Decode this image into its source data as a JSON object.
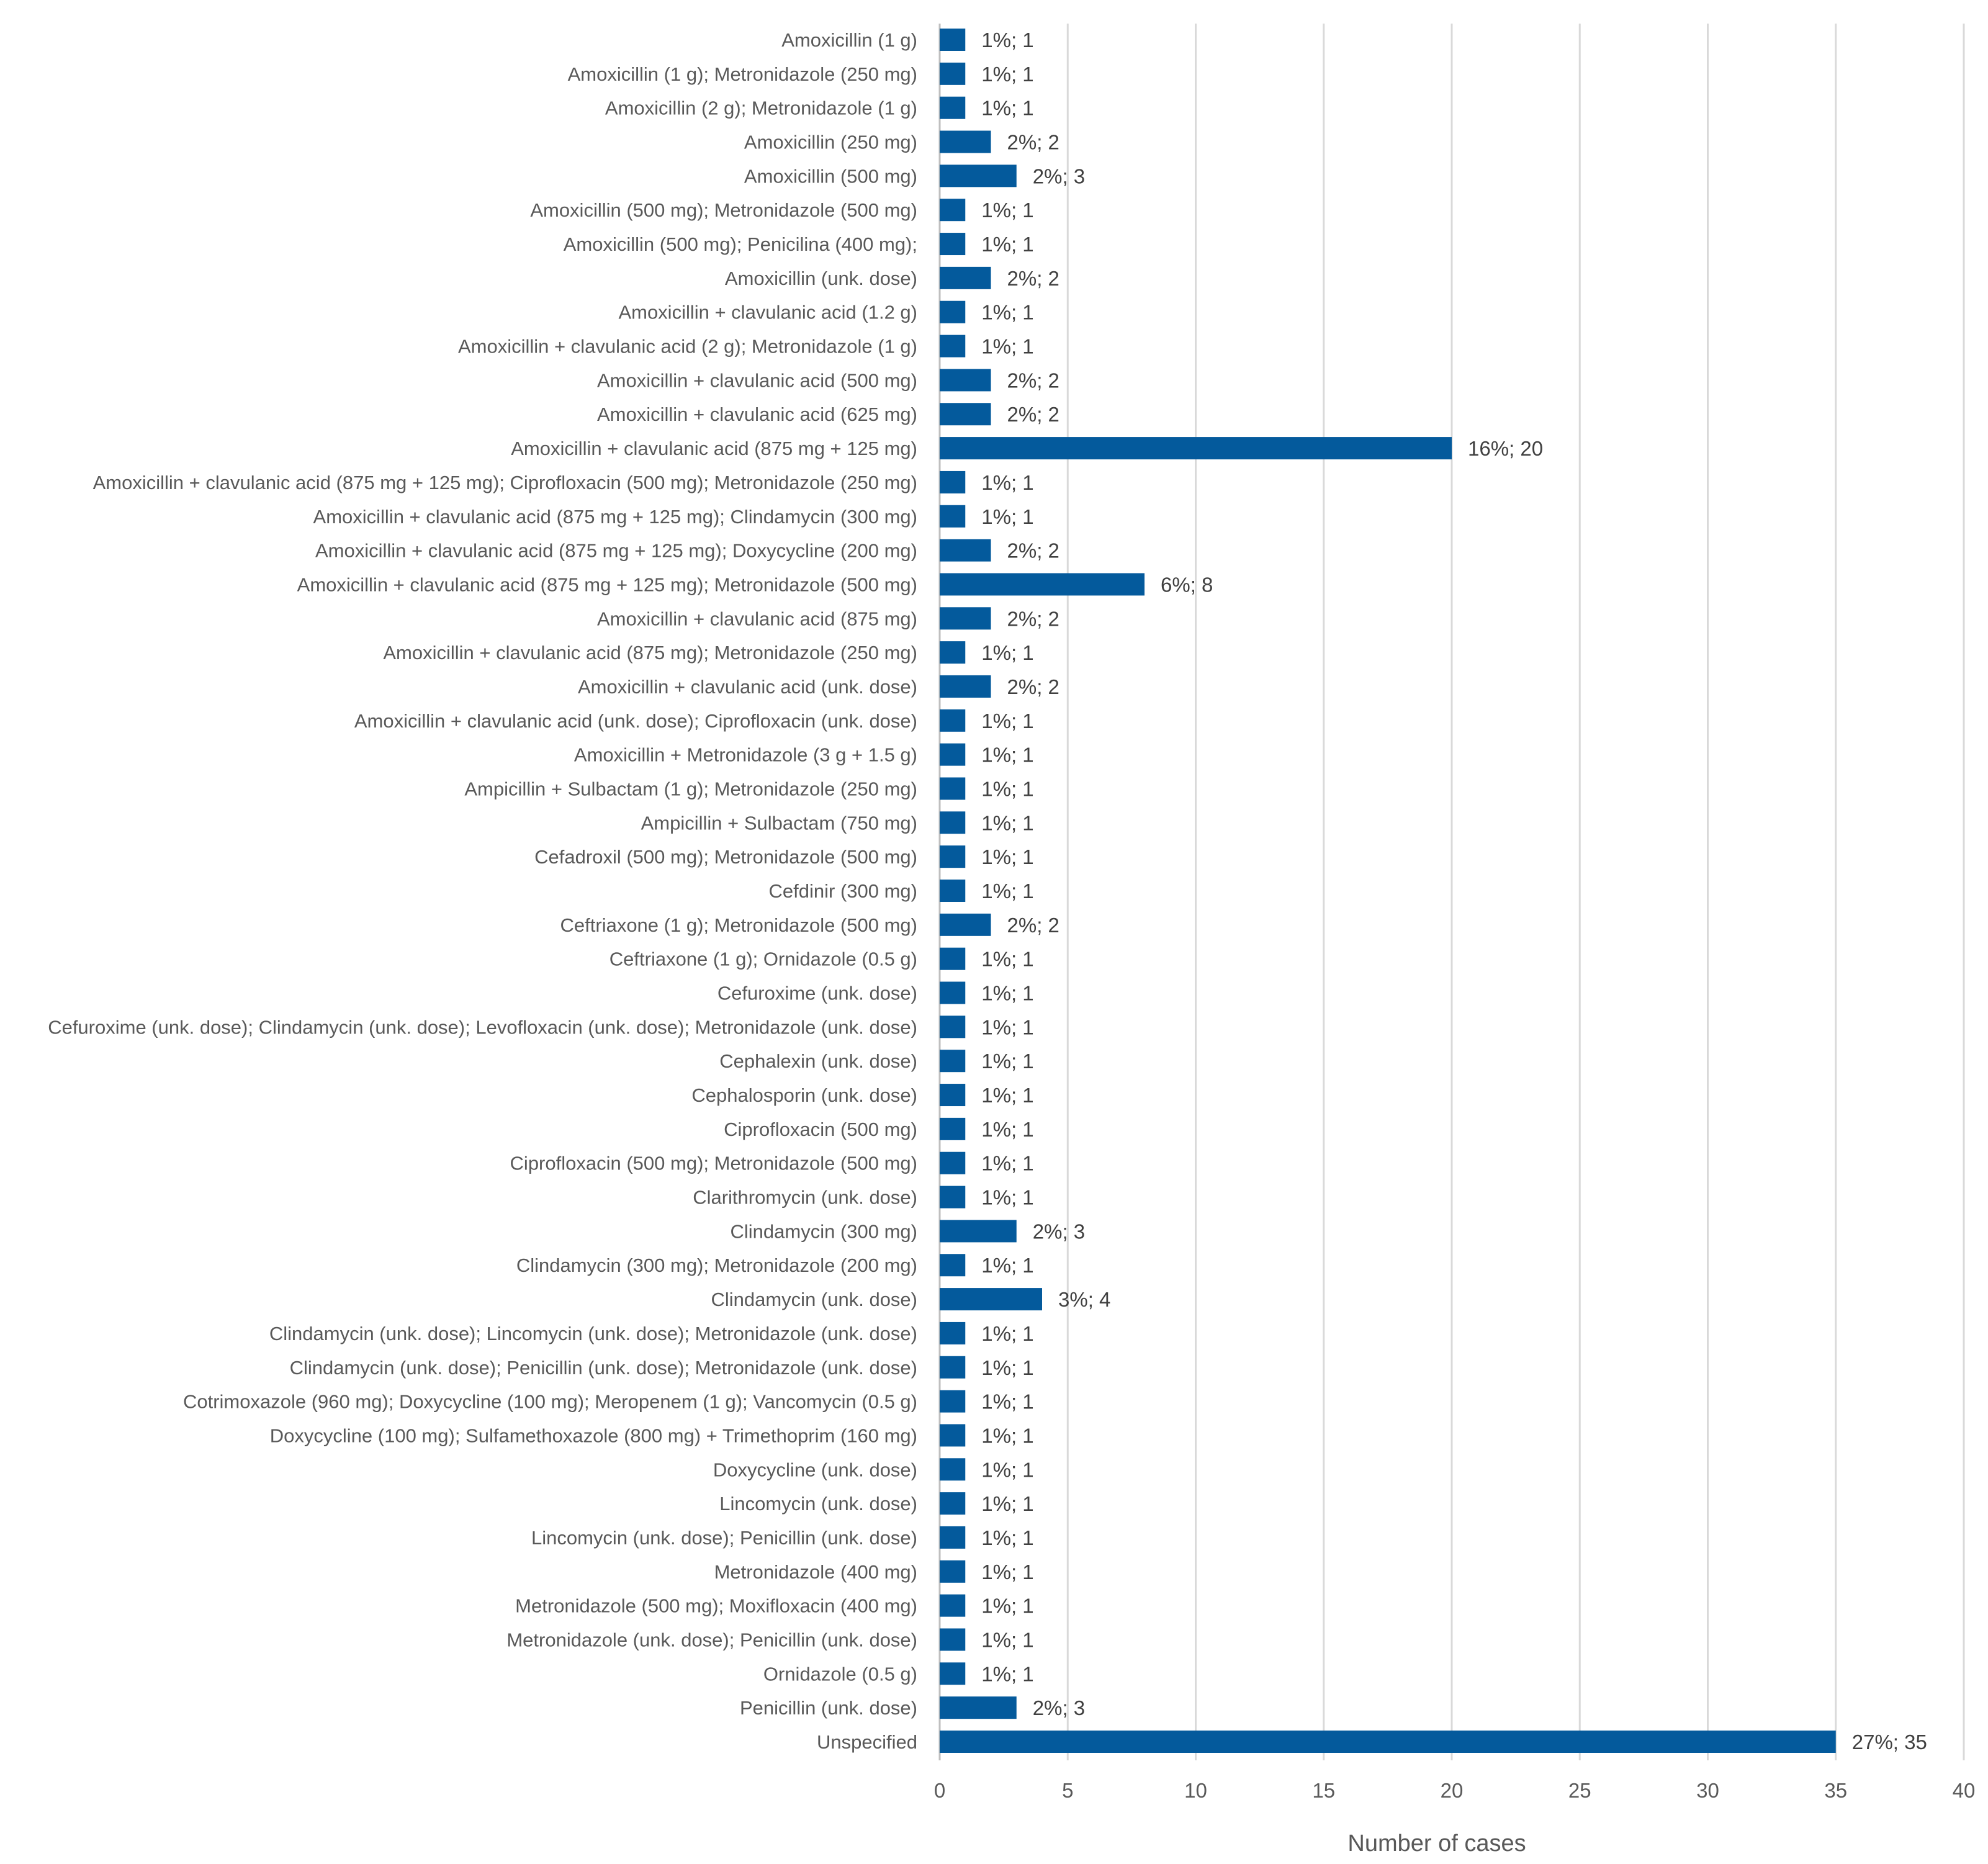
{
  "colors": {
    "bar": "#045a9c",
    "grid": "#d9d9d9",
    "text": "#595959"
  },
  "chart_data": {
    "type": "bar",
    "orientation": "horizontal",
    "title": "",
    "xlabel": "Number of cases",
    "ylabel": "",
    "xlim": [
      0,
      40
    ],
    "xticks": [
      0,
      5,
      10,
      15,
      20,
      25,
      30,
      35,
      40
    ],
    "grid": true,
    "categories": [
      "Amoxicillin (1 g)",
      "Amoxicillin (1 g); Metronidazole (250 mg)",
      "Amoxicillin (2 g); Metronidazole (1 g)",
      "Amoxicillin (250 mg)",
      "Amoxicillin (500 mg)",
      "Amoxicillin (500 mg); Metronidazole (500 mg)",
      "Amoxicillin (500 mg); Penicilina (400 mg);",
      "Amoxicillin (unk. dose)",
      "Amoxicillin + clavulanic acid (1.2 g)",
      "Amoxicillin + clavulanic acid (2 g); Metronidazole (1 g)",
      "Amoxicillin + clavulanic acid (500 mg)",
      "Amoxicillin + clavulanic acid (625 mg)",
      "Amoxicillin + clavulanic acid (875 mg + 125 mg)",
      "Amoxicillin + clavulanic acid (875 mg + 125 mg); Ciprofloxacin (500 mg); Metronidazole (250 mg)",
      "Amoxicillin + clavulanic acid (875 mg + 125 mg); Clindamycin (300 mg)",
      "Amoxicillin + clavulanic acid (875 mg + 125 mg); Doxycycline (200 mg)",
      "Amoxicillin + clavulanic acid (875 mg + 125 mg); Metronidazole (500 mg)",
      "Amoxicillin + clavulanic acid (875 mg)",
      "Amoxicillin + clavulanic acid (875 mg); Metronidazole (250 mg)",
      "Amoxicillin + clavulanic acid (unk. dose)",
      "Amoxicillin + clavulanic acid (unk. dose); Ciprofloxacin (unk. dose)",
      "Amoxicillin + Metronidazole (3 g + 1.5 g)",
      "Ampicillin + Sulbactam (1 g); Metronidazole (250 mg)",
      "Ampicillin + Sulbactam (750 mg)",
      "Cefadroxil (500 mg); Metronidazole (500 mg)",
      "Cefdinir (300 mg)",
      "Ceftriaxone (1 g); Metronidazole (500 mg)",
      "Ceftriaxone (1 g); Ornidazole (0.5 g)",
      "Cefuroxime (unk. dose)",
      "Cefuroxime (unk. dose); Clindamycin (unk. dose); Levofloxacin (unk. dose); Metronidazole (unk. dose)",
      "Cephalexin (unk. dose)",
      "Cephalosporin (unk. dose)",
      "Ciprofloxacin (500 mg)",
      "Ciprofloxacin (500 mg); Metronidazole (500 mg)",
      "Clarithromycin (unk. dose)",
      "Clindamycin (300 mg)",
      "Clindamycin (300 mg); Metronidazole (200 mg)",
      "Clindamycin (unk. dose)",
      "Clindamycin (unk. dose); Lincomycin (unk. dose); Metronidazole (unk. dose)",
      "Clindamycin (unk. dose); Penicillin (unk. dose); Metronidazole (unk. dose)",
      "Cotrimoxazole (960 mg); Doxycycline (100 mg); Meropenem (1 g); Vancomycin (0.5 g)",
      "Doxycycline (100 mg); Sulfamethoxazole (800 mg) + Trimethoprim (160 mg)",
      "Doxycycline (unk. dose)",
      "Lincomycin (unk. dose)",
      "Lincomycin (unk. dose); Penicillin (unk. dose)",
      "Metronidazole (400 mg)",
      "Metronidazole (500 mg); Moxifloxacin (400 mg)",
      "Metronidazole (unk. dose); Penicillin (unk. dose)",
      "Ornidazole (0.5 g)",
      "Penicillin (unk. dose)",
      "Unspecified"
    ],
    "values": [
      1,
      1,
      1,
      2,
      3,
      1,
      1,
      2,
      1,
      1,
      2,
      2,
      20,
      1,
      1,
      2,
      8,
      2,
      1,
      2,
      1,
      1,
      1,
      1,
      1,
      1,
      2,
      1,
      1,
      1,
      1,
      1,
      1,
      1,
      1,
      3,
      1,
      4,
      1,
      1,
      1,
      1,
      1,
      1,
      1,
      1,
      1,
      1,
      1,
      3,
      35
    ],
    "data_labels": [
      "1%; 1",
      "1%; 1",
      "1%; 1",
      "2%; 2",
      "2%; 3",
      "1%; 1",
      "1%; 1",
      "2%; 2",
      "1%; 1",
      "1%; 1",
      "2%; 2",
      "2%; 2",
      "16%; 20",
      "1%; 1",
      "1%; 1",
      "2%; 2",
      "6%; 8",
      "2%; 2",
      "1%; 1",
      "2%; 2",
      "1%; 1",
      "1%; 1",
      "1%; 1",
      "1%; 1",
      "1%; 1",
      "1%; 1",
      "2%; 2",
      "1%; 1",
      "1%; 1",
      "1%; 1",
      "1%; 1",
      "1%; 1",
      "1%; 1",
      "1%; 1",
      "1%; 1",
      "2%; 3",
      "1%; 1",
      "3%; 4",
      "1%; 1",
      "1%; 1",
      "1%; 1",
      "1%; 1",
      "1%; 1",
      "1%; 1",
      "1%; 1",
      "1%; 1",
      "1%; 1",
      "1%; 1",
      "1%; 1",
      "2%; 3",
      "27%; 35"
    ]
  }
}
